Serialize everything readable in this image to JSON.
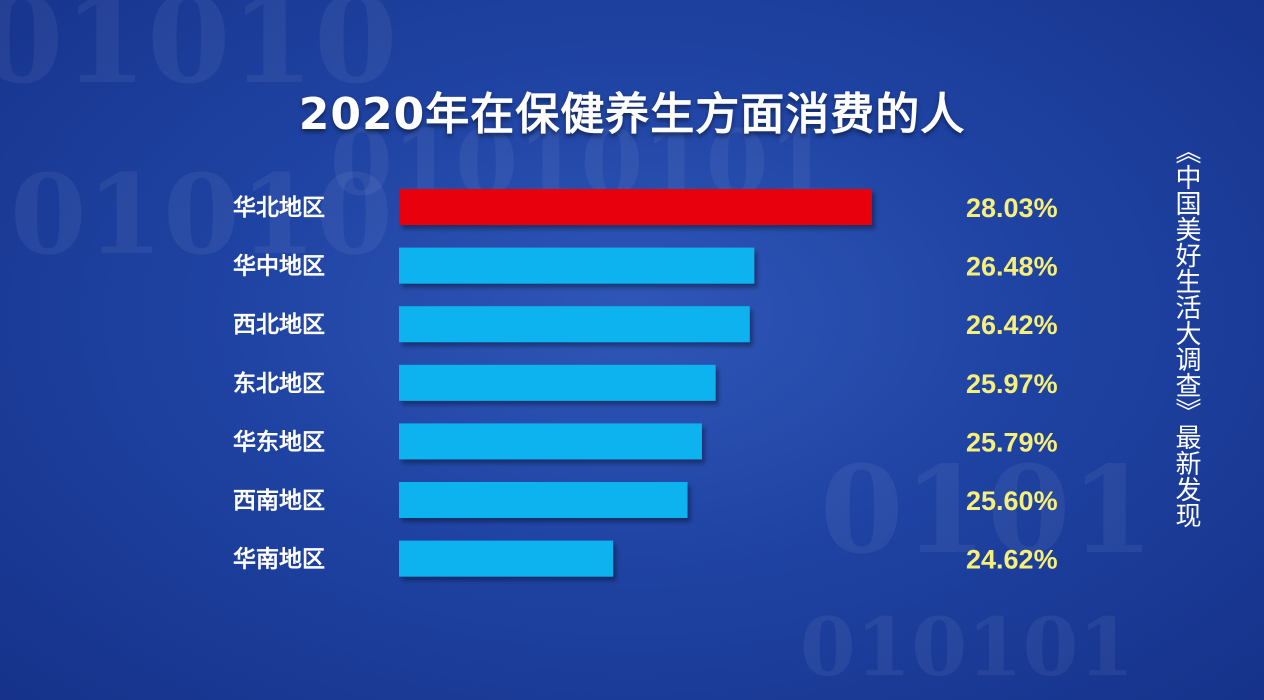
{
  "source_note": "《中国美好生活大调查》最新发现",
  "colors": {
    "highlight": "#e8000a",
    "bar": "#0db3ef",
    "value_text": "#f6ef7a",
    "label_text": "#ffffff"
  },
  "chart_data": {
    "type": "bar",
    "orientation": "horizontal",
    "title": "2020年在保健养生方面消费的人",
    "categories": [
      "华北地区",
      "华中地区",
      "西北地区",
      "东北地区",
      "华东地区",
      "西南地区",
      "华南地区"
    ],
    "values": [
      28.03,
      26.48,
      26.42,
      25.97,
      25.79,
      25.6,
      24.62
    ],
    "value_labels": [
      "28.03%",
      "26.48%",
      "26.42%",
      "25.97%",
      "25.79%",
      "25.60%",
      "24.62%"
    ],
    "highlighted_index": 0,
    "unit": "%",
    "grid": false,
    "legend": "none"
  }
}
